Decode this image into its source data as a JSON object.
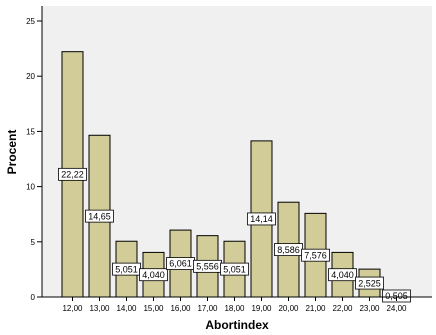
{
  "chart_data": {
    "type": "bar",
    "xlabel": "Abortindex",
    "ylabel": "Procent",
    "categories": [
      "12,00",
      "13,00",
      "14,00",
      "15,00",
      "16,00",
      "17,00",
      "18,00",
      "19,00",
      "20,00",
      "21,00",
      "22,00",
      "23,00",
      "24,00"
    ],
    "values": [
      22.22,
      14.65,
      5.051,
      4.04,
      6.061,
      5.556,
      5.051,
      14.14,
      8.586,
      7.576,
      4.04,
      2.525,
      0.505
    ],
    "data_labels": [
      "22,22",
      "14,65",
      "5,051",
      "4,040",
      "6,061",
      "5,556",
      "5,051",
      "14,14",
      "8,586",
      "7,576",
      "4,040",
      "2,525",
      "0,505"
    ],
    "y_ticks": [
      0,
      5,
      10,
      15,
      20,
      25
    ],
    "y_tick_labels": [
      "0",
      "5",
      "10",
      "15",
      "20",
      "25"
    ],
    "ylim": [
      0,
      25.5
    ],
    "grid": false,
    "colors": {
      "plot_background": "#f0f0f0",
      "bar_fill": "#d2cc98",
      "bar_stroke": "#000000",
      "label_box": "#ffffff"
    }
  }
}
